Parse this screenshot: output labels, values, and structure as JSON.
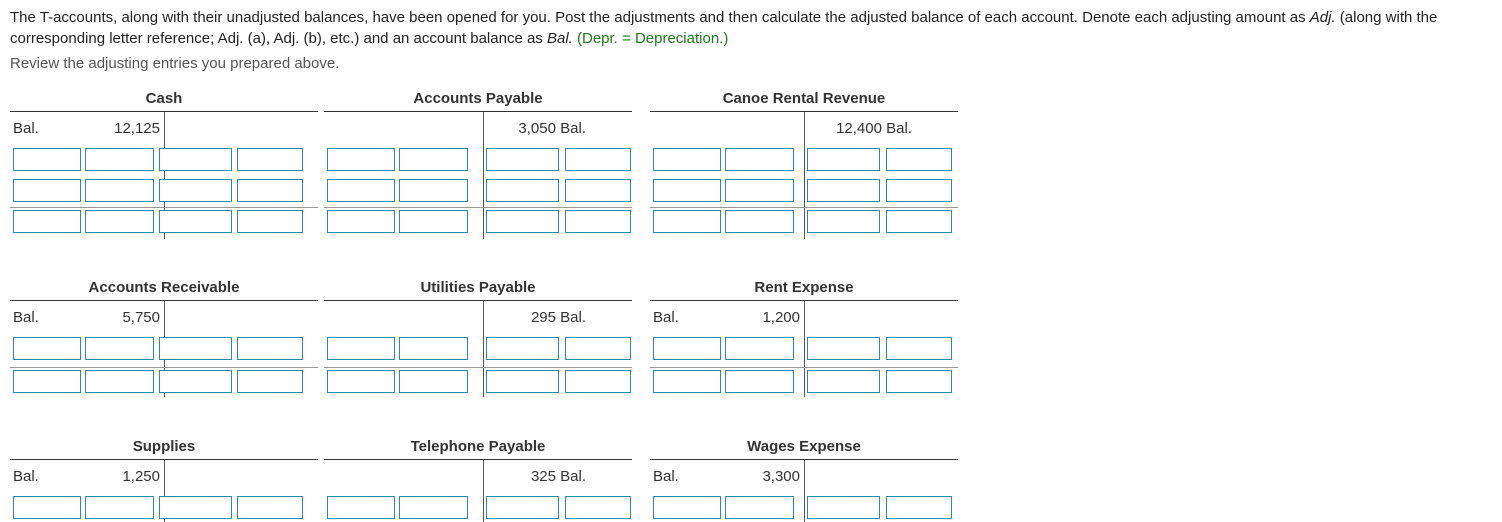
{
  "instructions": {
    "part1": "The T-accounts, along with their unadjusted balances, have been opened for you. Post the adjustments and then calculate the adjusted balance of each account. Denote each adjusting amount as ",
    "adj_word": "Adj.",
    "part2": " (along with the corresponding letter reference; Adj. (a), Adj. (b), etc.) and an account balance as ",
    "bal_word": "Bal.",
    "part3": " ",
    "depr_note": "(Depr. = Depreciation.)"
  },
  "review_text": "Review the adjusting entries you prepared above.",
  "accounts": {
    "cash": {
      "title": "Cash",
      "left_label": "Bal.",
      "left_amount": "12,125",
      "right_amount": "",
      "right_label": ""
    },
    "accounts_payable": {
      "title": "Accounts Payable",
      "left_label": "",
      "left_amount": "",
      "right_amount": "3,050",
      "right_label": "Bal."
    },
    "canoe_rental_revenue": {
      "title": "Canoe Rental Revenue",
      "left_label": "",
      "left_amount": "",
      "right_amount": "12,400",
      "right_label": "Bal."
    },
    "accounts_receivable": {
      "title": "Accounts Receivable",
      "left_label": "Bal.",
      "left_amount": "5,750",
      "right_amount": "",
      "right_label": ""
    },
    "utilities_payable": {
      "title": "Utilities Payable",
      "left_label": "",
      "left_amount": "",
      "right_amount": "295",
      "right_label": "Bal."
    },
    "rent_expense": {
      "title": "Rent Expense",
      "left_label": "Bal.",
      "left_amount": "1,200",
      "right_amount": "",
      "right_label": ""
    },
    "supplies": {
      "title": "Supplies",
      "left_label": "Bal.",
      "left_amount": "1,250",
      "right_amount": "",
      "right_label": ""
    },
    "telephone_payable": {
      "title": "Telephone Payable",
      "left_label": "",
      "left_amount": "",
      "right_amount": "325",
      "right_label": "Bal."
    },
    "wages_expense": {
      "title": "Wages Expense",
      "left_label": "Bal.",
      "left_amount": "3,300",
      "right_amount": "",
      "right_label": ""
    }
  }
}
